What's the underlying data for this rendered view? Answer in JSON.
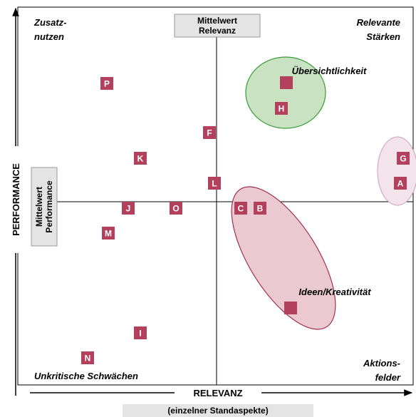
{
  "quadrants": {
    "top_left": [
      "Zusatz-",
      "nutzen"
    ],
    "top_right": [
      "Relevante",
      "Stärken"
    ],
    "bottom_left": "Unkritische Schwächen",
    "bottom_right": [
      "Aktions-",
      "felder"
    ]
  },
  "mean_relevance": [
    "Mittelwert",
    "Relevanz"
  ],
  "mean_performance": [
    "Mittelwert",
    "Performance"
  ],
  "y_axis": "PERFORMANCE",
  "x_axis": {
    "title": "RELEVANZ",
    "subtitle": "(einzelner Standaspekte)"
  },
  "clusters": [
    "Übersichtlichkeit",
    "Ideen/Kreativität"
  ],
  "points": [
    "P",
    "H",
    "F",
    "K",
    "G",
    "A",
    "L",
    "J",
    "O",
    "C",
    "B",
    "M",
    "I",
    "N"
  ]
}
